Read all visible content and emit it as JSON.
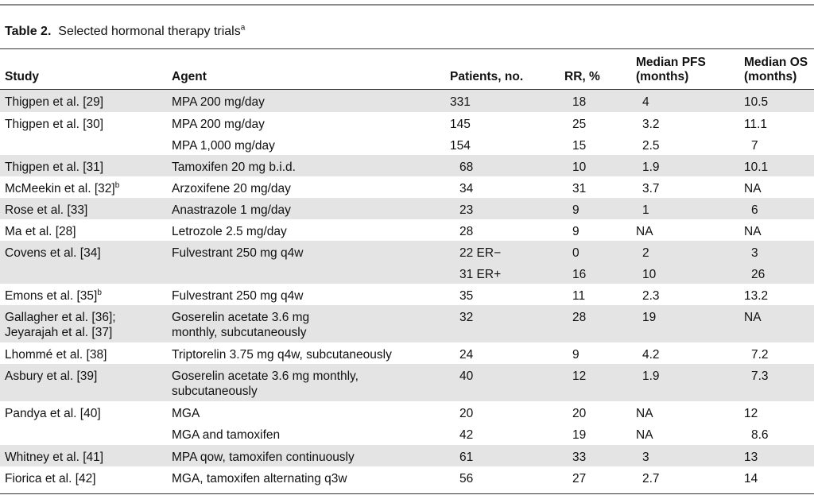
{
  "caption": {
    "label": "Table 2.",
    "title": "Selected hormonal therapy trials",
    "footnote_mark": "a"
  },
  "headers": {
    "study": "Study",
    "agent": "Agent",
    "patients": "Patients, no.",
    "rr": "RR, %",
    "pfs_line1": "Median PFS",
    "pfs_line2": "(months)",
    "os_line1": "Median OS",
    "os_line2": "(months)"
  },
  "rows": [
    {
      "shade": true,
      "h": 28,
      "study": [
        "Thigpen et al. [29]"
      ],
      "study_sup": "",
      "agent": [
        "MPA 200 mg/day"
      ],
      "patients": "331",
      "pat_indent": false,
      "rr": "18",
      "pfs": "4",
      "os": "10.5",
      "os_indent": false
    },
    {
      "shade": false,
      "h": 27,
      "study": [
        "Thigpen et al. [30]"
      ],
      "study_sup": "",
      "agent": [
        "MPA 200 mg/day"
      ],
      "patients": "145",
      "pat_indent": false,
      "rr": "25",
      "pfs": "3.2",
      "os": "11.1",
      "os_indent": false
    },
    {
      "shade": false,
      "h": 27,
      "study": [
        ""
      ],
      "study_sup": "",
      "agent": [
        "MPA 1,000 mg/day"
      ],
      "patients": "154",
      "pat_indent": false,
      "rr": "15",
      "pfs": "2.5",
      "os": "7",
      "os_indent": true
    },
    {
      "shade": true,
      "h": 27,
      "study": [
        "Thigpen et al. [31]"
      ],
      "study_sup": "",
      "agent": [
        "Tamoxifen 20 mg b.i.d."
      ],
      "patients": "68",
      "pat_indent": true,
      "rr": "10",
      "pfs": "1.9",
      "os": "10.1",
      "os_indent": false
    },
    {
      "shade": false,
      "h": 27,
      "study": [
        "McMeekin et al. [32]"
      ],
      "study_sup": "b",
      "agent": [
        "Arzoxifene 20 mg/day"
      ],
      "patients": "34",
      "pat_indent": true,
      "rr": "31",
      "pfs": "3.7",
      "os": "NA",
      "os_indent": false
    },
    {
      "shade": true,
      "h": 27,
      "study": [
        "Rose et al. [33]"
      ],
      "study_sup": "",
      "agent": [
        "Anastrazole 1 mg/day"
      ],
      "patients": "23",
      "pat_indent": true,
      "rr": "9",
      "pfs": "1",
      "os": "6",
      "os_indent": true
    },
    {
      "shade": false,
      "h": 27,
      "study": [
        "Ma et al. [28]"
      ],
      "study_sup": "",
      "agent": [
        "Letrozole 2.5 mg/day"
      ],
      "patients": "28",
      "pat_indent": true,
      "rr": "9",
      "pfs": "NA",
      "os": "NA",
      "os_indent": false
    },
    {
      "shade": true,
      "h": 27,
      "study": [
        "Covens et al. [34]"
      ],
      "study_sup": "",
      "agent": [
        "Fulvestrant 250 mg q4w"
      ],
      "patients": "22 ER−",
      "pat_indent": true,
      "rr": "0",
      "pfs": "2",
      "os": "3",
      "os_indent": true
    },
    {
      "shade": true,
      "h": 27,
      "study": [
        ""
      ],
      "study_sup": "",
      "agent": [
        ""
      ],
      "patients": "31 ER+",
      "pat_indent": true,
      "rr": "16",
      "pfs": "10",
      "os": "26",
      "os_indent": true
    },
    {
      "shade": false,
      "h": 27,
      "study": [
        "Emons et al. [35]"
      ],
      "study_sup": "b",
      "agent": [
        "Fulvestrant 250 mg q4w"
      ],
      "patients": "35",
      "pat_indent": true,
      "rr": "11",
      "pfs": "2.3",
      "os": "13.2",
      "os_indent": false
    },
    {
      "shade": true,
      "h": 47,
      "study": [
        "Gallagher et al. [36];",
        "Jeyarajah et al. [37]"
      ],
      "study_sup": "",
      "agent": [
        "Goserelin acetate 3.6 mg",
        "monthly, subcutaneously"
      ],
      "patients": "32",
      "pat_indent": true,
      "rr": "28",
      "pfs": "19",
      "os": "NA",
      "os_indent": false
    },
    {
      "shade": false,
      "h": 27,
      "study": [
        "Lhommé et al. [38]"
      ],
      "study_sup": "",
      "agent": [
        "Triptorelin 3.75 mg q4w, subcutaneously"
      ],
      "patients": "24",
      "pat_indent": true,
      "rr": "9",
      "pfs": "4.2",
      "os": "7.2",
      "os_indent": true
    },
    {
      "shade": true,
      "h": 47,
      "study": [
        "Asbury et al. [39]"
      ],
      "study_sup": "",
      "agent": [
        "Goserelin acetate 3.6 mg monthly,",
        "subcutaneously"
      ],
      "patients": "40",
      "pat_indent": true,
      "rr": "12",
      "pfs": "1.9",
      "os": "7.3",
      "os_indent": true
    },
    {
      "shade": false,
      "h": 27,
      "study": [
        "Pandya et al. [40]"
      ],
      "study_sup": "",
      "agent": [
        "MGA"
      ],
      "patients": "20",
      "pat_indent": true,
      "rr": "20",
      "pfs": "NA",
      "os": "12",
      "os_indent": false
    },
    {
      "shade": false,
      "h": 28,
      "study": [
        ""
      ],
      "study_sup": "",
      "agent": [
        "MGA and tamoxifen"
      ],
      "patients": "42",
      "pat_indent": true,
      "rr": "19",
      "pfs": "NA",
      "os": "8.6",
      "os_indent": true
    },
    {
      "shade": true,
      "h": 27,
      "study": [
        "Whitney et al. [41]"
      ],
      "study_sup": "",
      "agent": [
        "MPA qow, tamoxifen continuously"
      ],
      "patients": "61",
      "pat_indent": true,
      "rr": "33",
      "pfs": "3",
      "os": "13",
      "os_indent": false
    },
    {
      "shade": false,
      "h": 28,
      "study": [
        "Fiorica et al. [42]"
      ],
      "study_sup": "",
      "agent": [
        "MGA, tamoxifen alternating q3w"
      ],
      "patients": "56",
      "pat_indent": true,
      "rr": "27",
      "pfs": "2.7",
      "os": "14",
      "os_indent": false
    }
  ]
}
